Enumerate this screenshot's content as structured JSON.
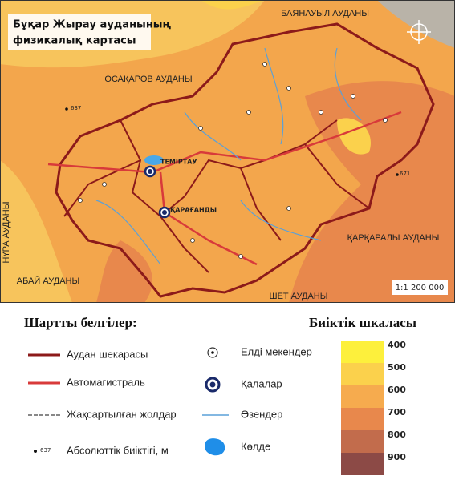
{
  "map": {
    "title": [
      "Бұқар Жырау ауданының",
      "физикалық картасы"
    ],
    "regions": [
      "БАЯНАУЫЛ АУДАНЫ",
      "ОСАҚАРОВ АУДАНЫ",
      "ҚАРҚАРАЛЫ АУДАНЫ",
      "АБАЙ АУДАНЫ",
      "НҰРА АУДАНЫ",
      "ШЕТ АУДАНЫ"
    ],
    "cities": [
      "ТЕМІРТАУ",
      "ҚАРАҒАНДЫ"
    ],
    "heights": [
      637,
      671
    ],
    "scale": "1:1 200 000"
  },
  "legend": {
    "title": "Шартты белгілер:",
    "items": [
      "Аудан шекарасы",
      "Автомагистраль",
      "Жақсартылған жолдар",
      "Абсолюттік биіктігі, м",
      "Елді мекендер",
      "Қалалар",
      "Өзендер",
      "Көлде"
    ],
    "sample_height": 637
  },
  "elevation_scale": {
    "title": "Биіктік шкаласы",
    "levels": [
      {
        "label": 400,
        "color": "#fdf03c"
      },
      {
        "label": 500,
        "color": "#fbd14c"
      },
      {
        "label": 600,
        "color": "#f6ab4e"
      },
      {
        "label": 700,
        "color": "#e8884c"
      },
      {
        "label": 800,
        "color": "#c26c4c"
      },
      {
        "label": 900,
        "color": "#8c4a46"
      }
    ]
  }
}
